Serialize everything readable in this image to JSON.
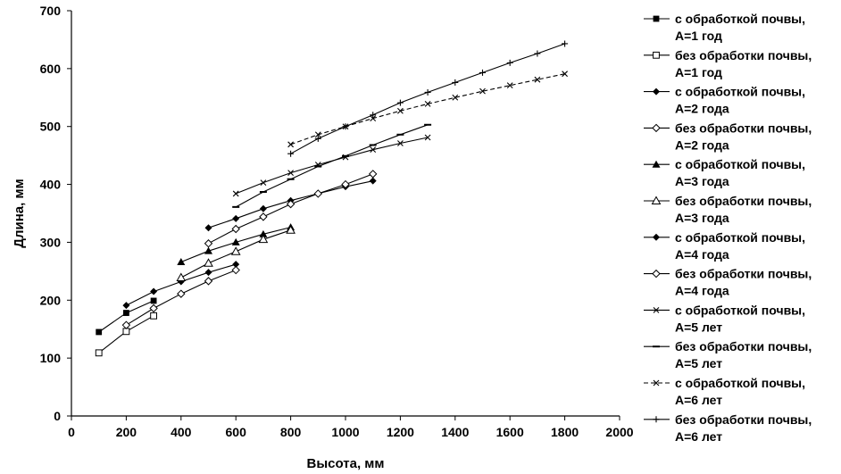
{
  "chart_data": {
    "type": "line",
    "xlabel": "Высота, мм",
    "ylabel": "Длина, мм",
    "xlim": [
      0,
      2000
    ],
    "ylim": [
      0,
      700
    ],
    "xticks": [
      0,
      200,
      400,
      600,
      800,
      1000,
      1200,
      1400,
      1600,
      1800,
      2000
    ],
    "yticks": [
      0,
      100,
      200,
      300,
      400,
      500,
      600,
      700
    ],
    "legend_position": "right",
    "grid": false,
    "series": [
      {
        "label1": "с обработкой почвы,",
        "label2": "А=1 год",
        "marker": "square-filled",
        "dash": false,
        "x": [
          100,
          200,
          300
        ],
        "y": [
          145,
          178,
          199
        ]
      },
      {
        "label1": "без обработки почвы,",
        "label2": "А=1 год",
        "marker": "square-open",
        "dash": false,
        "x": [
          100,
          200,
          300
        ],
        "y": [
          109,
          146,
          173
        ]
      },
      {
        "label1": "с обработкой почвы,",
        "label2": "А=2 года",
        "marker": "diamond-filled",
        "dash": false,
        "x": [
          200,
          300,
          400,
          500,
          600
        ],
        "y": [
          191,
          215,
          232,
          248,
          262
        ]
      },
      {
        "label1": "без обработки почвы,",
        "label2": "А=2 года",
        "marker": "diamond-open",
        "dash": false,
        "x": [
          200,
          300,
          400,
          500,
          600
        ],
        "y": [
          157,
          186,
          211,
          233,
          252
        ]
      },
      {
        "label1": "с обработкой почвы,",
        "label2": "А=3 года",
        "marker": "triangle-filled",
        "dash": false,
        "x": [
          400,
          500,
          600,
          700,
          800
        ],
        "y": [
          266,
          285,
          300,
          314,
          326
        ]
      },
      {
        "label1": "без обработки почвы,",
        "label2": "А=3 года",
        "marker": "triangle-open",
        "dash": false,
        "x": [
          400,
          500,
          600,
          700,
          800
        ],
        "y": [
          239,
          264,
          284,
          305,
          321
        ]
      },
      {
        "label1": "с обработкой  почвы,",
        "label2": "А=4 года",
        "marker": "diamond-filled",
        "dash": false,
        "x": [
          500,
          600,
          700,
          800,
          900,
          1000,
          1100
        ],
        "y": [
          325,
          341,
          358,
          372,
          384,
          396,
          406
        ]
      },
      {
        "label1": "без обработки почвы,",
        "label2": "А=4 года",
        "marker": "diamond-open",
        "dash": false,
        "x": [
          500,
          600,
          700,
          800,
          900,
          1000,
          1100
        ],
        "y": [
          298,
          323,
          344,
          366,
          384,
          400,
          418
        ]
      },
      {
        "label1": "с обработкой почвы,",
        "label2": "А=5 лет",
        "marker": "x",
        "dash": false,
        "x": [
          600,
          700,
          800,
          900,
          1000,
          1100,
          1200,
          1300
        ],
        "y": [
          384,
          403,
          420,
          434,
          447,
          460,
          471,
          481
        ]
      },
      {
        "label1": "без обработки почвы,",
        "label2": "А=5 лет",
        "marker": "dash",
        "dash": false,
        "x": [
          600,
          700,
          800,
          900,
          1000,
          1100,
          1200,
          1300
        ],
        "y": [
          361,
          387,
          409,
          431,
          449,
          468,
          486,
          503
        ]
      },
      {
        "label1": "с обработкой почвы,",
        "label2": "А=6 лет",
        "marker": "x",
        "dash": true,
        "x": [
          800,
          900,
          1000,
          1100,
          1200,
          1300,
          1400,
          1500,
          1600,
          1700,
          1800
        ],
        "y": [
          469,
          486,
          500,
          514,
          527,
          539,
          550,
          561,
          571,
          581,
          591
        ]
      },
      {
        "label1": "без обработки почвы,",
        "label2": "А=6 лет",
        "marker": "plus",
        "dash": false,
        "x": [
          800,
          900,
          1000,
          1100,
          1200,
          1300,
          1400,
          1500,
          1600,
          1700,
          1800
        ],
        "y": [
          453,
          479,
          500,
          520,
          541,
          559,
          576,
          593,
          610,
          626,
          643
        ]
      }
    ]
  }
}
